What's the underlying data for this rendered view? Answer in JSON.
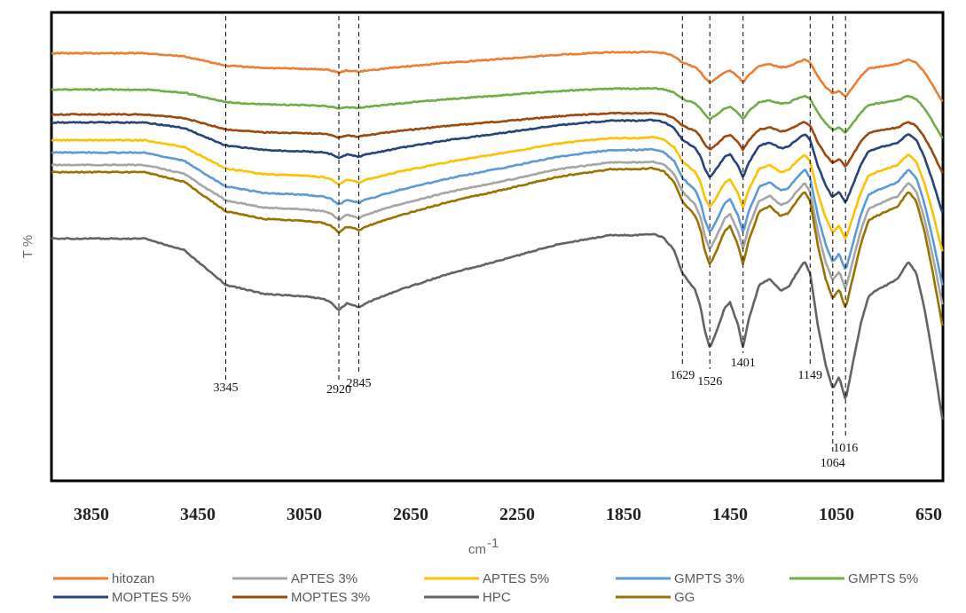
{
  "chart_data": {
    "type": "line",
    "xlabel": "cm",
    "xlabel_superscript": "-1",
    "ylabel": "T %",
    "x_reversed": true,
    "xlim": [
      4000,
      650
    ],
    "x_ticks": [
      3850,
      3450,
      3050,
      2650,
      2250,
      1850,
      1450,
      1050,
      650
    ],
    "y_ticks_shown": false,
    "grid": false,
    "legend_position": "bottom",
    "annotations": [
      {
        "x": 3345,
        "label": "3345"
      },
      {
        "x": 2920,
        "label": "2920"
      },
      {
        "x": 2845,
        "label": "2845"
      },
      {
        "x": 1629,
        "label": "1629"
      },
      {
        "x": 1526,
        "label": "1526"
      },
      {
        "x": 1401,
        "label": "1401"
      },
      {
        "x": 1149,
        "label": "1149"
      },
      {
        "x": 1064,
        "label": "1064"
      },
      {
        "x": 1016,
        "label": "1016"
      }
    ],
    "series": [
      {
        "name": "hitozan",
        "color": "#ED7D31",
        "base": 46,
        "amp": 0.35
      },
      {
        "name": "APTES 3%",
        "color": "#A5A5A5",
        "base": 172,
        "amp": 1.0
      },
      {
        "name": "APTES 5%",
        "color": "#FFC000",
        "base": 144,
        "amp": 0.8
      },
      {
        "name": "GMPTS 3%",
        "color": "#5B9BD5",
        "base": 158,
        "amp": 0.95
      },
      {
        "name": "GMPTS 5%",
        "color": "#70AD47",
        "base": 87,
        "amp": 0.35
      },
      {
        "name": "MOPTES 5%",
        "color": "#264478",
        "base": 124,
        "amp": 0.65
      },
      {
        "name": "MOPTES 3%",
        "color": "#9E480E",
        "base": 115,
        "amp": 0.42
      },
      {
        "name": "HPC",
        "color": "#636363",
        "base": 255,
        "amp": 1.3
      },
      {
        "name": "GG",
        "color": "#997300",
        "base": 180,
        "amp": 1.1
      }
    ],
    "spectrum_shape": {
      "x": [
        4000,
        3800,
        3650,
        3500,
        3450,
        3345,
        3200,
        3050,
        2980,
        2950,
        2920,
        2890,
        2860,
        2845,
        2820,
        2700,
        2500,
        2300,
        2100,
        1900,
        1800,
        1740,
        1700,
        1660,
        1629,
        1580,
        1560,
        1545,
        1526,
        1500,
        1470,
        1450,
        1420,
        1401,
        1380,
        1340,
        1300,
        1260,
        1230,
        1200,
        1170,
        1149,
        1120,
        1090,
        1064,
        1040,
        1016,
        990,
        960,
        930,
        900,
        860,
        820,
        780,
        750,
        720,
        690,
        650
      ],
      "shift": [
        0,
        0,
        0,
        10,
        20,
        40,
        48,
        50,
        52,
        55,
        62,
        56,
        58,
        60,
        56,
        45,
        30,
        18,
        5,
        -3,
        -3,
        -4,
        -1,
        10,
        30,
        45,
        60,
        80,
        95,
        80,
        60,
        55,
        75,
        95,
        70,
        40,
        35,
        45,
        42,
        30,
        20,
        30,
        75,
        110,
        130,
        120,
        140,
        110,
        75,
        50,
        45,
        40,
        35,
        20,
        30,
        60,
        100,
        160
      ]
    }
  }
}
